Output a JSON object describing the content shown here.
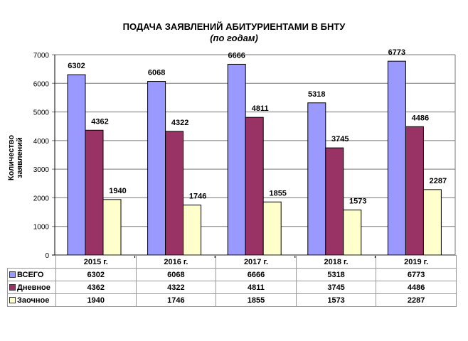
{
  "chart_data": {
    "type": "bar",
    "title": "ПОДАЧА ЗАЯВЛЕНИЙ  АБИТУРИЕНТАМИ В БНТУ",
    "subtitle": "(по годам)",
    "xlabel": "",
    "ylabel": "Количество заявлений",
    "ylim": [
      0,
      7000
    ],
    "yticks": [
      0,
      1000,
      2000,
      3000,
      4000,
      5000,
      6000,
      7000
    ],
    "grid": true,
    "legend": "data-table",
    "categories": [
      "2015 г.",
      "2016 г.",
      "2017 г.",
      "2018 г.",
      "2019 г."
    ],
    "series": [
      {
        "name": "ВСЕГО",
        "color": "#9999ff",
        "values": [
          6302,
          6068,
          6666,
          5318,
          6773
        ]
      },
      {
        "name": "Дневное",
        "color": "#993366",
        "values": [
          4362,
          4322,
          4811,
          3745,
          4486
        ]
      },
      {
        "name": "Заочное",
        "color": "#ffffcc",
        "values": [
          1940,
          1746,
          1855,
          1573,
          2287
        ]
      }
    ]
  }
}
